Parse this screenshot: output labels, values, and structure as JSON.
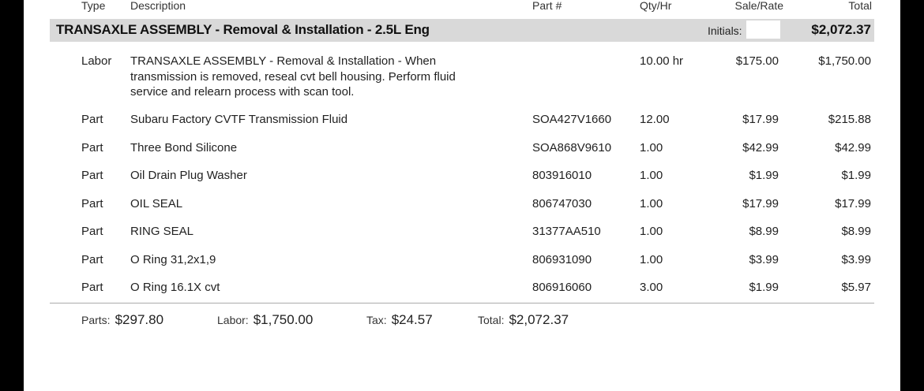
{
  "headers": {
    "type": "Type",
    "description": "Description",
    "part_no": "Part #",
    "qty": "Qty/Hr",
    "rate": "Sale/Rate",
    "total": "Total"
  },
  "section": {
    "title": "TRANSAXLE ASSEMBLY - Removal & Installation - 2.5L Eng",
    "initials_label": "Initials:",
    "total": "$2,072.37"
  },
  "rows": [
    {
      "type": "Labor",
      "desc": "TRANSAXLE ASSEMBLY - Removal & Installation - When transmission is removed, reseal cvt bell housing. Perform fluid service and relearn process with scan tool.",
      "part": "",
      "qty": "10.00 hr",
      "rate": "$175.00",
      "total": "$1,750.00"
    },
    {
      "type": "Part",
      "desc": "Subaru Factory CVTF Transmission Fluid",
      "part": "SOA427V1660",
      "qty": "12.00",
      "rate": "$17.99",
      "total": "$215.88"
    },
    {
      "type": "Part",
      "desc": "Three Bond Silicone",
      "part": "SOA868V9610",
      "qty": "1.00",
      "rate": "$42.99",
      "total": "$42.99"
    },
    {
      "type": "Part",
      "desc": "Oil Drain Plug Washer",
      "part": "803916010",
      "qty": "1.00",
      "rate": "$1.99",
      "total": "$1.99"
    },
    {
      "type": "Part",
      "desc": "OIL SEAL",
      "part": "806747030",
      "qty": "1.00",
      "rate": "$17.99",
      "total": "$17.99"
    },
    {
      "type": "Part",
      "desc": "RING SEAL",
      "part": "31377AA510",
      "qty": "1.00",
      "rate": "$8.99",
      "total": "$8.99"
    },
    {
      "type": "Part",
      "desc": "O Ring 31,2x1,9",
      "part": "806931090",
      "qty": "1.00",
      "rate": "$3.99",
      "total": "$3.99"
    },
    {
      "type": "Part",
      "desc": "O Ring 16.1X cvt",
      "part": "806916060",
      "qty": "3.00",
      "rate": "$1.99",
      "total": "$5.97"
    }
  ],
  "summary": {
    "parts_label": "Parts:",
    "parts_value": "$297.80",
    "labor_label": "Labor:",
    "labor_value": "$1,750.00",
    "tax_label": "Tax:",
    "tax_value": "$24.57",
    "total_label": "Total:",
    "total_value": "$2,072.37"
  }
}
